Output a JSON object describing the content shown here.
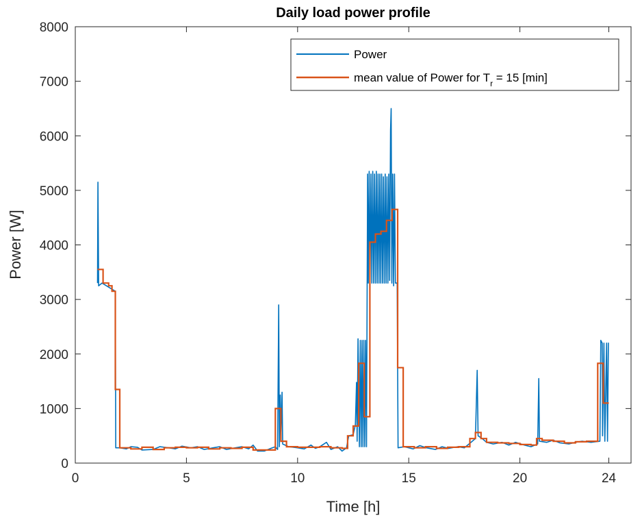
{
  "chart_data": {
    "type": "line",
    "title": "Daily load power profile",
    "xlabel": "Time [h]",
    "ylabel": "Power [W]",
    "xlim": [
      0,
      25
    ],
    "ylim": [
      0,
      8000
    ],
    "xticks": [
      0,
      5,
      10,
      15,
      20,
      24
    ],
    "yticks": [
      0,
      1000,
      2000,
      3000,
      4000,
      5000,
      6000,
      7000,
      8000
    ],
    "grid": false,
    "legend_placement": "top-right",
    "legend": {
      "power": "Power",
      "mean_prefix": "mean value of Power for T",
      "mean_sub": "r",
      "mean_suffix": " = 15 [min]"
    },
    "series": [
      {
        "name": "Power",
        "color": "#0072BD",
        "points": [
          [
            1.0,
            3300
          ],
          [
            1.02,
            5150
          ],
          [
            1.05,
            3250
          ],
          [
            1.2,
            3300
          ],
          [
            1.4,
            3250
          ],
          [
            1.6,
            3200
          ],
          [
            1.8,
            3150
          ],
          [
            1.82,
            280
          ],
          [
            2.0,
            280
          ],
          [
            2.3,
            260
          ],
          [
            2.5,
            300
          ],
          [
            2.8,
            290
          ],
          [
            3.0,
            240
          ],
          [
            3.5,
            250
          ],
          [
            3.8,
            300
          ],
          [
            4.2,
            280
          ],
          [
            4.5,
            260
          ],
          [
            4.8,
            310
          ],
          [
            5.2,
            280
          ],
          [
            5.5,
            300
          ],
          [
            5.8,
            250
          ],
          [
            6.2,
            280
          ],
          [
            6.5,
            300
          ],
          [
            6.8,
            250
          ],
          [
            7.2,
            280
          ],
          [
            7.5,
            300
          ],
          [
            7.8,
            260
          ],
          [
            8.0,
            330
          ],
          [
            8.2,
            220
          ],
          [
            8.5,
            220
          ],
          [
            8.8,
            270
          ],
          [
            9.0,
            300
          ],
          [
            9.1,
            250
          ],
          [
            9.15,
            2900
          ],
          [
            9.18,
            300
          ],
          [
            9.22,
            1250
          ],
          [
            9.25,
            400
          ],
          [
            9.3,
            1300
          ],
          [
            9.33,
            350
          ],
          [
            9.6,
            300
          ],
          [
            10.0,
            280
          ],
          [
            10.3,
            260
          ],
          [
            10.6,
            330
          ],
          [
            10.8,
            270
          ],
          [
            11.0,
            300
          ],
          [
            11.3,
            380
          ],
          [
            11.5,
            250
          ],
          [
            11.8,
            300
          ],
          [
            12.0,
            220
          ],
          [
            12.2,
            280
          ],
          [
            12.3,
            500
          ],
          [
            12.5,
            520
          ],
          [
            12.6,
            700
          ],
          [
            12.65,
            1480
          ],
          [
            12.68,
            400
          ],
          [
            12.72,
            2280
          ],
          [
            12.78,
            300
          ],
          [
            12.82,
            2250
          ],
          [
            12.86,
            300
          ],
          [
            12.9,
            2250
          ],
          [
            12.94,
            300
          ],
          [
            12.98,
            2250
          ],
          [
            13.02,
            300
          ],
          [
            13.06,
            2250
          ],
          [
            13.1,
            300
          ],
          [
            13.15,
            5300
          ],
          [
            13.18,
            3300
          ],
          [
            13.22,
            5350
          ],
          [
            13.26,
            3300
          ],
          [
            13.3,
            5300
          ],
          [
            13.34,
            3300
          ],
          [
            13.38,
            5350
          ],
          [
            13.42,
            3300
          ],
          [
            13.46,
            5300
          ],
          [
            13.5,
            3300
          ],
          [
            13.54,
            5350
          ],
          [
            13.58,
            3300
          ],
          [
            13.62,
            5300
          ],
          [
            13.66,
            3300
          ],
          [
            13.7,
            5300
          ],
          [
            13.74,
            3300
          ],
          [
            13.78,
            5300
          ],
          [
            13.82,
            3300
          ],
          [
            13.86,
            5250
          ],
          [
            13.9,
            3300
          ],
          [
            13.94,
            5300
          ],
          [
            13.98,
            3300
          ],
          [
            14.02,
            5250
          ],
          [
            14.06,
            3300
          ],
          [
            14.1,
            5300
          ],
          [
            14.14,
            3350
          ],
          [
            14.18,
            6100
          ],
          [
            14.21,
            6500
          ],
          [
            14.24,
            3300
          ],
          [
            14.28,
            5300
          ],
          [
            14.32,
            3250
          ],
          [
            14.36,
            5300
          ],
          [
            14.4,
            3300
          ],
          [
            14.48,
            3300
          ],
          [
            14.52,
            280
          ],
          [
            14.8,
            300
          ],
          [
            15.2,
            260
          ],
          [
            15.5,
            320
          ],
          [
            15.8,
            280
          ],
          [
            16.2,
            250
          ],
          [
            16.5,
            300
          ],
          [
            16.8,
            270
          ],
          [
            17.2,
            300
          ],
          [
            17.5,
            280
          ],
          [
            17.8,
            380
          ],
          [
            18.0,
            450
          ],
          [
            18.08,
            1700
          ],
          [
            18.12,
            500
          ],
          [
            18.3,
            450
          ],
          [
            18.5,
            380
          ],
          [
            18.8,
            350
          ],
          [
            19.2,
            380
          ],
          [
            19.5,
            330
          ],
          [
            19.8,
            380
          ],
          [
            20.2,
            330
          ],
          [
            20.5,
            300
          ],
          [
            20.8,
            350
          ],
          [
            20.85,
            1550
          ],
          [
            20.88,
            400
          ],
          [
            21.2,
            380
          ],
          [
            21.5,
            420
          ],
          [
            21.8,
            370
          ],
          [
            22.2,
            350
          ],
          [
            22.5,
            380
          ],
          [
            22.8,
            400
          ],
          [
            23.2,
            380
          ],
          [
            23.6,
            400
          ],
          [
            23.64,
            2250
          ],
          [
            23.7,
            2200
          ],
          [
            23.72,
            500
          ],
          [
            23.78,
            2200
          ],
          [
            23.82,
            400
          ],
          [
            23.9,
            2200
          ],
          [
            23.94,
            400
          ],
          [
            23.98,
            2200
          ],
          [
            24.0,
            2200
          ]
        ]
      },
      {
        "name": "mean value of Power for T_r = 15 [min]",
        "color": "#D95319",
        "steps": [
          [
            1.0,
            3550
          ],
          [
            1.25,
            3300
          ],
          [
            1.5,
            3250
          ],
          [
            1.65,
            3150
          ],
          [
            1.8,
            1350
          ],
          [
            2.0,
            280
          ],
          [
            2.5,
            260
          ],
          [
            3.0,
            290
          ],
          [
            3.5,
            250
          ],
          [
            4.0,
            280
          ],
          [
            4.5,
            290
          ],
          [
            5.0,
            280
          ],
          [
            5.5,
            290
          ],
          [
            6.0,
            260
          ],
          [
            6.5,
            280
          ],
          [
            7.0,
            270
          ],
          [
            7.5,
            290
          ],
          [
            8.0,
            240
          ],
          [
            8.5,
            240
          ],
          [
            9.0,
            1000
          ],
          [
            9.25,
            400
          ],
          [
            9.5,
            300
          ],
          [
            10.0,
            290
          ],
          [
            10.5,
            290
          ],
          [
            11.0,
            300
          ],
          [
            11.5,
            280
          ],
          [
            12.0,
            270
          ],
          [
            12.25,
            500
          ],
          [
            12.5,
            680
          ],
          [
            12.75,
            1830
          ],
          [
            13.0,
            850
          ],
          [
            13.25,
            4050
          ],
          [
            13.5,
            4200
          ],
          [
            13.75,
            4250
          ],
          [
            14.0,
            4450
          ],
          [
            14.25,
            4650
          ],
          [
            14.5,
            1750
          ],
          [
            14.75,
            300
          ],
          [
            15.25,
            280
          ],
          [
            15.75,
            300
          ],
          [
            16.25,
            270
          ],
          [
            16.75,
            290
          ],
          [
            17.25,
            300
          ],
          [
            17.75,
            450
          ],
          [
            18.0,
            560
          ],
          [
            18.25,
            450
          ],
          [
            18.5,
            380
          ],
          [
            19.0,
            370
          ],
          [
            19.5,
            360
          ],
          [
            20.0,
            340
          ],
          [
            20.5,
            330
          ],
          [
            20.75,
            450
          ],
          [
            21.0,
            420
          ],
          [
            21.5,
            400
          ],
          [
            22.0,
            370
          ],
          [
            22.5,
            390
          ],
          [
            23.0,
            400
          ],
          [
            23.5,
            1830
          ],
          [
            23.75,
            1100
          ],
          [
            24.0,
            1100
          ]
        ]
      }
    ]
  }
}
